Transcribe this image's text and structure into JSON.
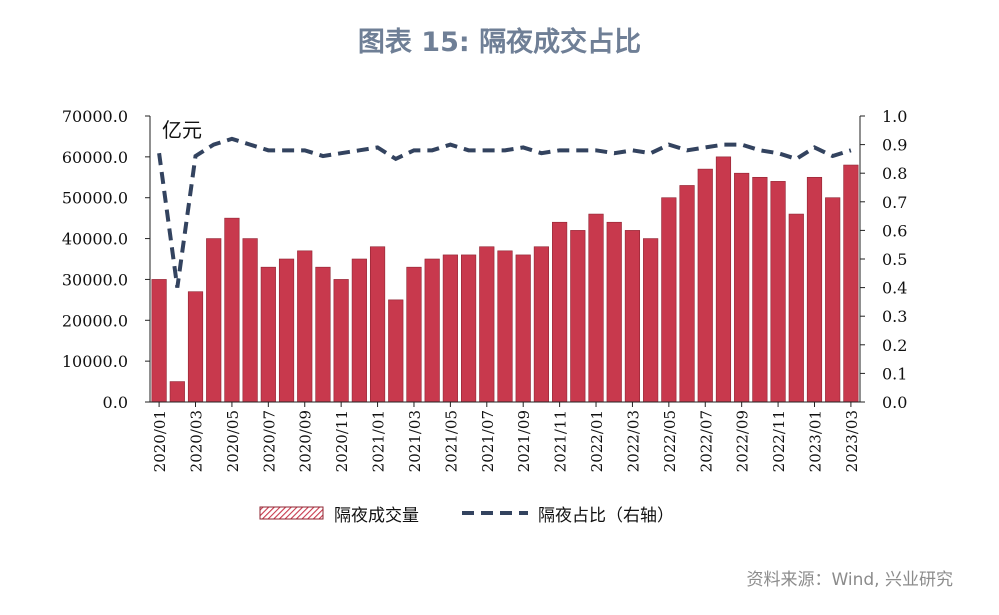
{
  "figure": {
    "title": "图表 15: 隔夜成交占比",
    "source": "资料来源：Wind, 兴业研究",
    "unit_left": "亿元"
  },
  "colors": {
    "bar": "#c8394d",
    "bar_stroke": "#8f2432",
    "ratio_line": "#33435f",
    "title": "#6f7f96",
    "source": "#8c8c8c"
  },
  "chart_data": {
    "type": "bar",
    "secondary_type": "line",
    "series": [
      {
        "name": "隔夜成交量",
        "type": "bar",
        "axis": "left",
        "legend_label": "隔夜成交量"
      },
      {
        "name": "隔夜占比（右轴）",
        "type": "line",
        "style": "dashed",
        "axis": "right",
        "legend_label": "隔夜占比（右轴）"
      }
    ],
    "y_left": {
      "min": 0,
      "max": 70000,
      "ticks": [
        "70000.0",
        "60000.0",
        "50000.0",
        "40000.0",
        "30000.0",
        "20000.0",
        "10000.0",
        "0.0"
      ],
      "unit": "亿元"
    },
    "y_right": {
      "min": 0,
      "max": 1.0,
      "ticks": [
        "1.0",
        "0.9",
        "0.8",
        "0.7",
        "0.6",
        "0.5",
        "0.4",
        "0.3",
        "0.2",
        "0.1",
        "0.0"
      ]
    },
    "x_ticks": [
      "2020/01",
      "2020/03",
      "2020/05",
      "2020/07",
      "2020/09",
      "2020/11",
      "2021/01",
      "2021/03",
      "2021/05",
      "2021/07",
      "2021/09",
      "2021/11",
      "2022/01",
      "2022/03",
      "2022/05",
      "2022/07",
      "2022/09",
      "2022/11",
      "2023/01",
      "2023/03"
    ],
    "x_range": [
      "2020/01",
      "2023/04"
    ],
    "legend_position": "bottom",
    "grid": false,
    "monthly_volume": [
      {
        "month": "2020/01",
        "volume": 30000
      },
      {
        "month": "2020/02",
        "volume": 5000
      },
      {
        "month": "2020/03",
        "volume": 27000
      },
      {
        "month": "2020/04",
        "volume": 40000
      },
      {
        "month": "2020/05",
        "volume": 45000
      },
      {
        "month": "2020/06",
        "volume": 40000
      },
      {
        "month": "2020/07",
        "volume": 33000
      },
      {
        "month": "2020/08",
        "volume": 35000
      },
      {
        "month": "2020/09",
        "volume": 37000
      },
      {
        "month": "2020/10",
        "volume": 33000
      },
      {
        "month": "2020/11",
        "volume": 30000
      },
      {
        "month": "2020/12",
        "volume": 35000
      },
      {
        "month": "2021/01",
        "volume": 38000
      },
      {
        "month": "2021/02",
        "volume": 25000
      },
      {
        "month": "2021/03",
        "volume": 33000
      },
      {
        "month": "2021/04",
        "volume": 35000
      },
      {
        "month": "2021/05",
        "volume": 36000
      },
      {
        "month": "2021/06",
        "volume": 36000
      },
      {
        "month": "2021/07",
        "volume": 38000
      },
      {
        "month": "2021/08",
        "volume": 37000
      },
      {
        "month": "2021/09",
        "volume": 36000
      },
      {
        "month": "2021/10",
        "volume": 38000
      },
      {
        "month": "2021/11",
        "volume": 44000
      },
      {
        "month": "2021/12",
        "volume": 42000
      },
      {
        "month": "2022/01",
        "volume": 46000
      },
      {
        "month": "2022/02",
        "volume": 44000
      },
      {
        "month": "2022/03",
        "volume": 42000
      },
      {
        "month": "2022/04",
        "volume": 40000
      },
      {
        "month": "2022/05",
        "volume": 50000
      },
      {
        "month": "2022/06",
        "volume": 53000
      },
      {
        "month": "2022/07",
        "volume": 57000
      },
      {
        "month": "2022/08",
        "volume": 60000
      },
      {
        "month": "2022/09",
        "volume": 56000
      },
      {
        "month": "2022/10",
        "volume": 55000
      },
      {
        "month": "2022/11",
        "volume": 54000
      },
      {
        "month": "2022/12",
        "volume": 46000
      },
      {
        "month": "2023/01",
        "volume": 55000
      },
      {
        "month": "2023/02",
        "volume": 50000
      },
      {
        "month": "2023/03",
        "volume": 58000
      }
    ],
    "monthly_ratio": [
      {
        "month": "2020/01",
        "ratio": 0.87
      },
      {
        "month": "2020/02",
        "ratio": 0.4
      },
      {
        "month": "2020/03",
        "ratio": 0.86
      },
      {
        "month": "2020/04",
        "ratio": 0.9
      },
      {
        "month": "2020/05",
        "ratio": 0.92
      },
      {
        "month": "2020/06",
        "ratio": 0.9
      },
      {
        "month": "2020/07",
        "ratio": 0.88
      },
      {
        "month": "2020/08",
        "ratio": 0.88
      },
      {
        "month": "2020/09",
        "ratio": 0.88
      },
      {
        "month": "2020/10",
        "ratio": 0.86
      },
      {
        "month": "2020/11",
        "ratio": 0.87
      },
      {
        "month": "2020/12",
        "ratio": 0.88
      },
      {
        "month": "2021/01",
        "ratio": 0.89
      },
      {
        "month": "2021/02",
        "ratio": 0.85
      },
      {
        "month": "2021/03",
        "ratio": 0.88
      },
      {
        "month": "2021/04",
        "ratio": 0.88
      },
      {
        "month": "2021/05",
        "ratio": 0.9
      },
      {
        "month": "2021/06",
        "ratio": 0.88
      },
      {
        "month": "2021/07",
        "ratio": 0.88
      },
      {
        "month": "2021/08",
        "ratio": 0.88
      },
      {
        "month": "2021/09",
        "ratio": 0.89
      },
      {
        "month": "2021/10",
        "ratio": 0.87
      },
      {
        "month": "2021/11",
        "ratio": 0.88
      },
      {
        "month": "2021/12",
        "ratio": 0.88
      },
      {
        "month": "2022/01",
        "ratio": 0.88
      },
      {
        "month": "2022/02",
        "ratio": 0.87
      },
      {
        "month": "2022/03",
        "ratio": 0.88
      },
      {
        "month": "2022/04",
        "ratio": 0.87
      },
      {
        "month": "2022/05",
        "ratio": 0.9
      },
      {
        "month": "2022/06",
        "ratio": 0.88
      },
      {
        "month": "2022/07",
        "ratio": 0.89
      },
      {
        "month": "2022/08",
        "ratio": 0.9
      },
      {
        "month": "2022/09",
        "ratio": 0.9
      },
      {
        "month": "2022/10",
        "ratio": 0.88
      },
      {
        "month": "2022/11",
        "ratio": 0.87
      },
      {
        "month": "2022/12",
        "ratio": 0.85
      },
      {
        "month": "2023/01",
        "ratio": 0.89
      },
      {
        "month": "2023/02",
        "ratio": 0.86
      },
      {
        "month": "2023/03",
        "ratio": 0.88
      }
    ]
  }
}
